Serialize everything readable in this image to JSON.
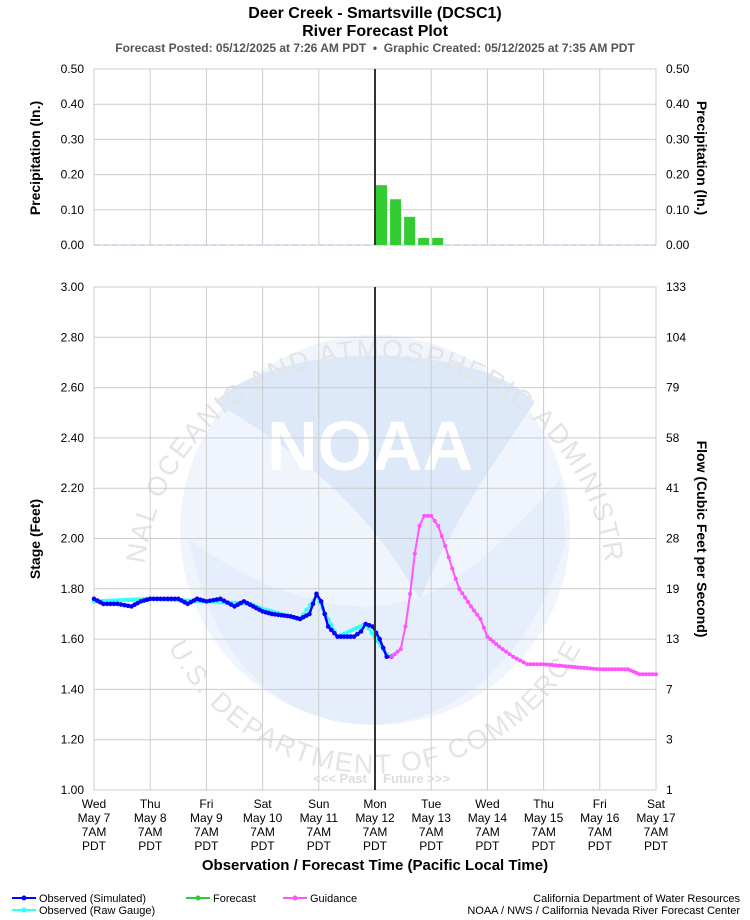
{
  "header": {
    "title": "Deer Creek - Smartsville (DCSC1)",
    "subtitle": "River Forecast Plot",
    "posted": "Forecast Posted: 05/12/2025 at 7:26 AM PDT  •  Graphic Created: 05/12/2025 at 7:35 AM PDT"
  },
  "watermark": {
    "logo_text": "NOAA",
    "ring_top": "NATIONAL OCEANIC AND ATMOSPHERIC ADMINISTRATION",
    "ring_bottom": "U.S. DEPARTMENT OF COMMERCE"
  },
  "colors": {
    "observed": "#0000ff",
    "raw_gauge": "#33ffff",
    "forecast": "#33cc33",
    "guidance": "#ff55ff",
    "now_line": "#333333"
  },
  "chart_data": [
    {
      "type": "bar",
      "ylabel": "Precipitation (In.)",
      "ylabel_right": "Precipitation (In.)",
      "ylim": [
        0,
        0.5
      ],
      "yticks": [
        "0.00",
        "0.10",
        "0.20",
        "0.30",
        "0.40",
        "0.50"
      ],
      "grid": true,
      "series": [
        {
          "name": "Forecast",
          "values": [
            {
              "x": "2025-05-12 07:00",
              "y": 0.17
            },
            {
              "x": "2025-05-12 13:00",
              "y": 0.13
            },
            {
              "x": "2025-05-12 19:00",
              "y": 0.08
            },
            {
              "x": "2025-05-13 01:00",
              "y": 0.02
            },
            {
              "x": "2025-05-13 07:00",
              "y": 0.02
            }
          ]
        }
      ]
    },
    {
      "type": "line",
      "xlabel": "Observation / Forecast Time (Pacific Local Time)",
      "ylabel": "Stage (Feet)",
      "ylabel_right": "Flow (Cubic Feet per Second)",
      "ylim": [
        1.0,
        3.0
      ],
      "yticks": [
        "1.00",
        "1.20",
        "1.40",
        "1.60",
        "1.80",
        "2.00",
        "2.20",
        "2.40",
        "2.60",
        "2.80",
        "3.00"
      ],
      "yticks_right": [
        "1",
        "3",
        "7",
        "13",
        "19",
        "28",
        "41",
        "58",
        "79",
        "104",
        "133"
      ],
      "xlim": [
        "2025-05-07 07:00",
        "2025-05-17 07:00"
      ],
      "xticks": [
        {
          "day": "Wed",
          "date": "May 7",
          "time": "7AM",
          "tz": "PDT"
        },
        {
          "day": "Thu",
          "date": "May 8",
          "time": "7AM",
          "tz": "PDT"
        },
        {
          "day": "Fri",
          "date": "May 9",
          "time": "7AM",
          "tz": "PDT"
        },
        {
          "day": "Sat",
          "date": "May 10",
          "time": "7AM",
          "tz": "PDT"
        },
        {
          "day": "Sun",
          "date": "May 11",
          "time": "7AM",
          "tz": "PDT"
        },
        {
          "day": "Mon",
          "date": "May 12",
          "time": "7AM",
          "tz": "PDT"
        },
        {
          "day": "Tue",
          "date": "May 13",
          "time": "7AM",
          "tz": "PDT"
        },
        {
          "day": "Wed",
          "date": "May 14",
          "time": "7AM",
          "tz": "PDT"
        },
        {
          "day": "Thu",
          "date": "May 15",
          "time": "7AM",
          "tz": "PDT"
        },
        {
          "day": "Fri",
          "date": "May 16",
          "time": "7AM",
          "tz": "PDT"
        },
        {
          "day": "Sat",
          "date": "May 17",
          "time": "7AM",
          "tz": "PDT"
        }
      ],
      "now": "2025-05-12 07:00",
      "annotations": {
        "past": "<<< Past",
        "future": "Future >>>"
      },
      "grid": true,
      "series": [
        {
          "name": "Observed (Simulated)",
          "values": [
            {
              "x": "2025-05-07 07:00",
              "y": 1.76
            },
            {
              "x": "2025-05-07 11:00",
              "y": 1.74
            },
            {
              "x": "2025-05-07 17:00",
              "y": 1.74
            },
            {
              "x": "2025-05-07 23:00",
              "y": 1.73
            },
            {
              "x": "2025-05-08 03:00",
              "y": 1.75
            },
            {
              "x": "2025-05-08 07:00",
              "y": 1.76
            },
            {
              "x": "2025-05-08 13:00",
              "y": 1.76
            },
            {
              "x": "2025-05-08 19:00",
              "y": 1.76
            },
            {
              "x": "2025-05-08 23:00",
              "y": 1.74
            },
            {
              "x": "2025-05-09 03:00",
              "y": 1.76
            },
            {
              "x": "2025-05-09 07:00",
              "y": 1.75
            },
            {
              "x": "2025-05-09 13:00",
              "y": 1.76
            },
            {
              "x": "2025-05-09 19:00",
              "y": 1.73
            },
            {
              "x": "2025-05-09 23:00",
              "y": 1.75
            },
            {
              "x": "2025-05-10 03:00",
              "y": 1.73
            },
            {
              "x": "2025-05-10 07:00",
              "y": 1.71
            },
            {
              "x": "2025-05-10 11:00",
              "y": 1.7
            },
            {
              "x": "2025-05-10 19:00",
              "y": 1.69
            },
            {
              "x": "2025-05-10 23:00",
              "y": 1.68
            },
            {
              "x": "2025-05-11 03:00",
              "y": 1.7
            },
            {
              "x": "2025-05-11 06:00",
              "y": 1.78
            },
            {
              "x": "2025-05-11 08:00",
              "y": 1.75
            },
            {
              "x": "2025-05-11 11:00",
              "y": 1.65
            },
            {
              "x": "2025-05-11 15:00",
              "y": 1.61
            },
            {
              "x": "2025-05-11 22:00",
              "y": 1.61
            },
            {
              "x": "2025-05-12 01:00",
              "y": 1.63
            },
            {
              "x": "2025-05-12 03:00",
              "y": 1.66
            },
            {
              "x": "2025-05-12 06:00",
              "y": 1.65
            },
            {
              "x": "2025-05-12 09:00",
              "y": 1.6
            },
            {
              "x": "2025-05-12 12:00",
              "y": 1.53
            },
            {
              "x": "2025-05-12 14:00",
              "y": 1.53
            }
          ]
        },
        {
          "name": "Observed (Raw Gauge)",
          "values": [
            {
              "x": "2025-05-07 07:00",
              "y": 1.75
            },
            {
              "x": "2025-05-08 07:00",
              "y": 1.76
            },
            {
              "x": "2025-05-09 07:00",
              "y": 1.75
            },
            {
              "x": "2025-05-10 02:00",
              "y": 1.74
            },
            {
              "x": "2025-05-10 07:00",
              "y": 1.72
            },
            {
              "x": "2025-05-10 23:00",
              "y": 1.68
            },
            {
              "x": "2025-05-11 06:00",
              "y": 1.77
            },
            {
              "x": "2025-05-11 15:00",
              "y": 1.61
            },
            {
              "x": "2025-05-12 03:00",
              "y": 1.66
            },
            {
              "x": "2025-05-12 12:00",
              "y": 1.54
            }
          ]
        },
        {
          "name": "Guidance",
          "values": [
            {
              "x": "2025-05-12 14:00",
              "y": 1.53
            },
            {
              "x": "2025-05-12 18:00",
              "y": 1.56
            },
            {
              "x": "2025-05-12 20:00",
              "y": 1.65
            },
            {
              "x": "2025-05-12 22:00",
              "y": 1.78
            },
            {
              "x": "2025-05-13 00:00",
              "y": 1.94
            },
            {
              "x": "2025-05-13 02:00",
              "y": 2.05
            },
            {
              "x": "2025-05-13 04:00",
              "y": 2.09
            },
            {
              "x": "2025-05-13 07:00",
              "y": 2.09
            },
            {
              "x": "2025-05-13 10:00",
              "y": 2.05
            },
            {
              "x": "2025-05-13 13:00",
              "y": 1.97
            },
            {
              "x": "2025-05-13 16:00",
              "y": 1.88
            },
            {
              "x": "2025-05-13 19:00",
              "y": 1.8
            },
            {
              "x": "2025-05-14 00:00",
              "y": 1.73
            },
            {
              "x": "2025-05-14 04:00",
              "y": 1.68
            },
            {
              "x": "2025-05-14 07:00",
              "y": 1.61
            },
            {
              "x": "2025-05-14 12:00",
              "y": 1.57
            },
            {
              "x": "2025-05-14 18:00",
              "y": 1.53
            },
            {
              "x": "2025-05-15 00:00",
              "y": 1.5
            },
            {
              "x": "2025-05-15 07:00",
              "y": 1.5
            },
            {
              "x": "2025-05-15 19:00",
              "y": 1.49
            },
            {
              "x": "2025-05-16 07:00",
              "y": 1.48
            },
            {
              "x": "2025-05-16 19:00",
              "y": 1.48
            },
            {
              "x": "2025-05-17 00:00",
              "y": 1.46
            },
            {
              "x": "2025-05-17 07:00",
              "y": 1.46
            }
          ]
        }
      ]
    }
  ],
  "legend": {
    "items": [
      {
        "label": "Observed (Simulated)",
        "color": "#0000ff"
      },
      {
        "label": "Observed (Raw Gauge)",
        "color": "#33ffff"
      },
      {
        "label": "Forecast",
        "color": "#33cc33"
      },
      {
        "label": "Guidance",
        "color": "#ff55ff"
      }
    ]
  },
  "footer": {
    "credit1": "California Department of Water Resources",
    "credit2": "NOAA / NWS / California Nevada River Forecast Center"
  }
}
